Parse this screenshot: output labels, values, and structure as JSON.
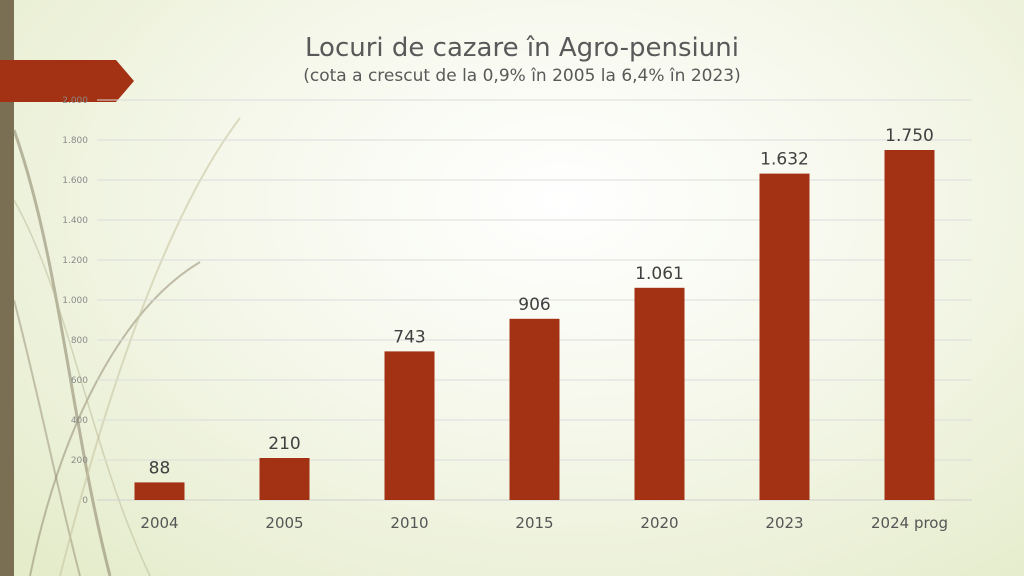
{
  "colors": {
    "bar": "#a33113",
    "accent": "#a33113",
    "side_bar": "#7a6f52",
    "grid": "#dcdcdc"
  },
  "chart_data": {
    "type": "bar",
    "title": "Locuri de cazare în Agro-pensiuni",
    "subtitle": "(cota a crescut de la 0,9% în 2005 la 6,4% în 2023)",
    "categories": [
      "2004",
      "2005",
      "2010",
      "2015",
      "2020",
      "2023",
      "2024 prog"
    ],
    "values": [
      88,
      210,
      743,
      906,
      1061,
      1632,
      1750
    ],
    "data_labels": [
      "88",
      "210",
      "743",
      "906",
      "1.061",
      "1.632",
      "1.750"
    ],
    "ylim": [
      0,
      2000
    ],
    "yticks": [
      0,
      200,
      400,
      600,
      800,
      1000,
      1200,
      1400,
      1600,
      1800,
      2000
    ],
    "ytick_labels": [
      "0",
      "200",
      "400",
      "600",
      "800",
      "1.000",
      "1.200",
      "1.400",
      "1.600",
      "1.800",
      "2.000"
    ],
    "xlabel": "",
    "ylabel": "",
    "grid": true,
    "legend": "none"
  }
}
